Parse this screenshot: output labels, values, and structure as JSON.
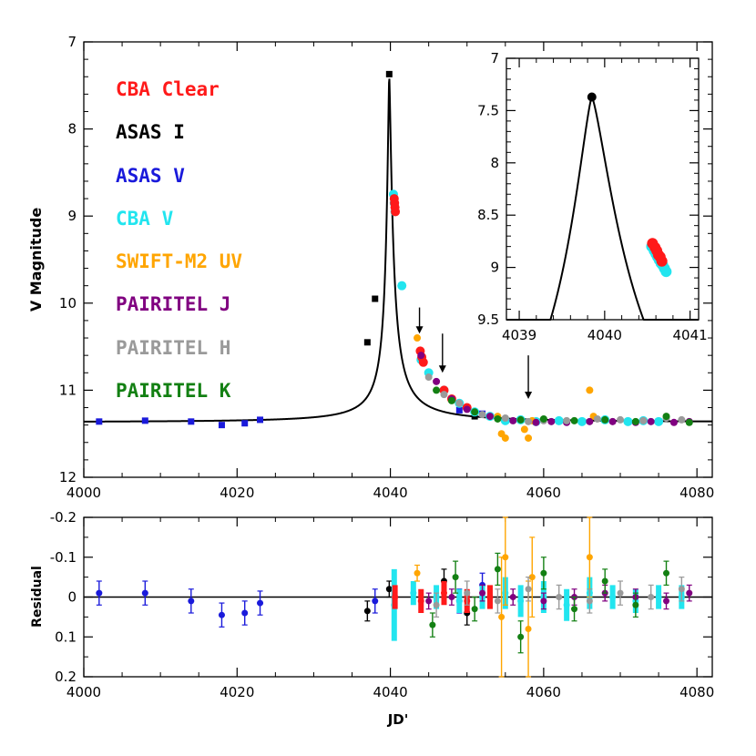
{
  "colors": {
    "cba_clear": "#ff1a1a",
    "asas_i": "#000000",
    "asas_v": "#1a1adb",
    "cba_v": "#22e5ef",
    "swift_m2": "#ffa500",
    "pairitel_j": "#800080",
    "pairitel_h": "#9a9a9a",
    "pairitel_k": "#138013",
    "curve": "#000000"
  },
  "chart_data": [
    {
      "id": "main",
      "type": "scatter",
      "title": "",
      "xlabel": "",
      "ylabel": "V Magnitude",
      "xlim": [
        4000,
        4082
      ],
      "ylim": [
        12,
        7
      ],
      "y_inverted": true,
      "xticks": [
        4000,
        4020,
        4040,
        4060,
        4080
      ],
      "yticks": [
        7,
        8,
        9,
        10,
        11,
        12
      ],
      "legend": {
        "position": "top-left",
        "entries": [
          {
            "label": "CBA  Clear",
            "series": "cba_clear"
          },
          {
            "label": "ASAS I",
            "series": "asas_i"
          },
          {
            "label": "ASAS V",
            "series": "asas_v"
          },
          {
            "label": "CBA  V",
            "series": "cba_v"
          },
          {
            "label": "SWIFT-M2 UV",
            "series": "swift_m2"
          },
          {
            "label": "PAIRITEL J",
            "series": "pairitel_j"
          },
          {
            "label": "PAIRITEL H",
            "series": "pairitel_h"
          },
          {
            "label": "PAIRITEL K",
            "series": "pairitel_k"
          }
        ]
      },
      "annotations": [
        {
          "type": "arrow",
          "label": "",
          "x": 4043.8,
          "y_from": 10.05,
          "y_to": 10.35
        },
        {
          "type": "arrow",
          "label": "",
          "x": 4046.8,
          "y_from": 10.35,
          "y_to": 10.8
        },
        {
          "type": "arrow",
          "label": "",
          "x": 4058,
          "y_from": 10.6,
          "y_to": 11.1
        }
      ],
      "model_curve": {
        "baseline": 11.37,
        "peak_x": 4039.85,
        "peak_y": 7.37,
        "description": "best-fit microlensing model"
      },
      "series": [
        {
          "name": "ASAS V",
          "key": "asas_v",
          "marker": "square",
          "x": [
            4002,
            4008,
            4014,
            4018,
            4021,
            4023,
            4049,
            4052
          ],
          "y": [
            11.36,
            11.35,
            11.36,
            11.4,
            11.38,
            11.34,
            11.23,
            11.27
          ]
        },
        {
          "name": "ASAS I",
          "key": "asas_i",
          "marker": "square",
          "x": [
            4037,
            4038,
            4039.85,
            4047,
            4050,
            4051
          ],
          "y": [
            10.45,
            9.95,
            7.37,
            11.02,
            11.2,
            11.3
          ]
        },
        {
          "name": "CBA V",
          "key": "cba_v",
          "marker": "circle",
          "x": [
            4040.4,
            4040.5,
            4040.6,
            4041.5,
            4044,
            4045,
            4047,
            4049,
            4051,
            4053,
            4055,
            4057,
            4059,
            4062,
            4065,
            4068,
            4071,
            4073,
            4075
          ],
          "y": [
            8.75,
            8.85,
            8.95,
            9.8,
            10.65,
            10.8,
            11.0,
            11.15,
            11.25,
            11.3,
            11.35,
            11.34,
            11.36,
            11.35,
            11.36,
            11.34,
            11.36,
            11.35,
            11.36
          ]
        },
        {
          "name": "CBA Clear",
          "key": "cba_clear",
          "marker": "circle",
          "x": [
            4040.5,
            4040.55,
            4040.6,
            4040.65,
            4043.9,
            4044.1,
            4044.3,
            4047,
            4048,
            4050
          ],
          "y": [
            8.8,
            8.85,
            8.9,
            8.95,
            10.55,
            10.62,
            10.68,
            11.0,
            11.1,
            11.2
          ]
        },
        {
          "name": "SWIFT-M2 UV",
          "key": "swift_m2",
          "marker": "circle",
          "x": [
            4043.5,
            4054,
            4054.5,
            4055,
            4057.5,
            4058,
            4058.5,
            4066,
            4066.5
          ],
          "y": [
            10.4,
            11.3,
            11.5,
            11.55,
            11.45,
            11.55,
            11.35,
            11.0,
            11.3
          ]
        },
        {
          "name": "PAIRITEL J",
          "key": "pairitel_j",
          "marker": "circle",
          "x": [
            4044,
            4046,
            4048,
            4050,
            4053,
            4056,
            4059,
            4061,
            4063,
            4066,
            4069,
            4072,
            4074,
            4077,
            4079
          ],
          "y": [
            10.6,
            10.9,
            11.1,
            11.22,
            11.3,
            11.35,
            11.37,
            11.36,
            11.37,
            11.36,
            11.36,
            11.37,
            11.36,
            11.37,
            11.36
          ]
        },
        {
          "name": "PAIRITEL H",
          "key": "pairitel_h",
          "marker": "circle",
          "x": [
            4045,
            4047,
            4049,
            4052,
            4055,
            4058,
            4060,
            4063,
            4067,
            4070,
            4073,
            4076,
            4078
          ],
          "y": [
            10.85,
            11.05,
            11.15,
            11.28,
            11.32,
            11.36,
            11.35,
            11.35,
            11.33,
            11.34,
            11.35,
            11.32,
            11.34
          ]
        },
        {
          "name": "PAIRITEL K",
          "key": "pairitel_k",
          "marker": "circle",
          "x": [
            4046,
            4048,
            4051,
            4054,
            4057,
            4060,
            4064,
            4068,
            4072,
            4076,
            4079
          ],
          "y": [
            11.0,
            11.12,
            11.25,
            11.33,
            11.34,
            11.33,
            11.35,
            11.34,
            11.36,
            11.3,
            11.37
          ]
        }
      ]
    },
    {
      "id": "inset",
      "type": "scatter",
      "title": "",
      "xlabel": "",
      "ylabel": "",
      "xlim": [
        4038.85,
        4041.1
      ],
      "ylim": [
        9.5,
        7
      ],
      "y_inverted": true,
      "xticks": [
        4039,
        4040,
        4041
      ],
      "yticks": [
        7,
        7.5,
        8,
        8.5,
        9,
        9.5
      ],
      "ytick_labels": [
        "7",
        "7.5",
        "8",
        "8.5",
        "9",
        "9.5"
      ],
      "series": [
        {
          "name": "ASAS I",
          "key": "asas_i",
          "marker": "circle",
          "x": [
            4039.85
          ],
          "y": [
            7.37
          ]
        },
        {
          "name": "CBA V",
          "key": "cba_v",
          "marker": "circle",
          "x": [
            4040.55,
            4040.58,
            4040.6,
            4040.62,
            4040.64,
            4040.66,
            4040.68,
            4040.7,
            4040.72
          ],
          "y": [
            8.8,
            8.84,
            8.87,
            8.9,
            8.93,
            8.96,
            8.98,
            9.01,
            9.04
          ]
        },
        {
          "name": "CBA Clear",
          "key": "cba_clear",
          "marker": "circle",
          "x": [
            4040.56,
            4040.59,
            4040.61,
            4040.63,
            4040.65,
            4040.67
          ],
          "y": [
            8.77,
            8.81,
            8.84,
            8.88,
            8.9,
            8.94
          ]
        }
      ]
    },
    {
      "id": "residual",
      "type": "scatter",
      "title": "",
      "xlabel": "JD'",
      "ylabel": "Residual",
      "xlim": [
        4000,
        4082
      ],
      "ylim": [
        0.2,
        -0.2
      ],
      "y_inverted": true,
      "xticks": [
        4000,
        4020,
        4040,
        4060,
        4080
      ],
      "yticks": [
        -0.2,
        -0.1,
        0,
        0.1,
        0.2
      ],
      "ytick_labels": [
        "-0.2",
        "-0.1",
        "0",
        "0.1",
        "0.2"
      ],
      "series": [
        {
          "name": "ASAS V",
          "key": "asas_v",
          "x": [
            4002,
            4008,
            4014,
            4018,
            4021,
            4023,
            4038,
            4049,
            4052
          ],
          "y": [
            -0.01,
            -0.01,
            0.01,
            0.045,
            0.04,
            0.015,
            0.01,
            0.01,
            -0.03
          ],
          "err": [
            0.03,
            0.03,
            0.03,
            0.03,
            0.03,
            0.03,
            0.03,
            0.03,
            0.03
          ]
        },
        {
          "name": "ASAS I",
          "key": "asas_i",
          "x": [
            4037,
            4039.85,
            4047,
            4050
          ],
          "y": [
            0.035,
            -0.02,
            -0.04,
            0.04
          ],
          "err": [
            0.025,
            0.02,
            0.03,
            0.03
          ]
        },
        {
          "name": "CBA V",
          "key": "cba_v",
          "x": [
            4040.5,
            4043,
            4046,
            4049,
            4052,
            4055,
            4057,
            4060,
            4063,
            4066,
            4069,
            4072,
            4075,
            4078
          ],
          "y": [
            0.02,
            -0.01,
            0.0,
            0.01,
            0.0,
            -0.01,
            0.01,
            0.0,
            0.02,
            -0.01,
            0.0,
            0.01,
            0.0,
            0.0
          ],
          "err": [
            0.09,
            0.03,
            0.03,
            0.03,
            0.03,
            0.04,
            0.04,
            0.04,
            0.04,
            0.04,
            0.03,
            0.03,
            0.03,
            0.03
          ]
        },
        {
          "name": "CBA Clear",
          "key": "cba_clear",
          "x": [
            4040.6,
            4044,
            4047,
            4050,
            4053
          ],
          "y": [
            0.0,
            0.01,
            -0.01,
            0.01,
            0.0
          ],
          "err": [
            0.03,
            0.03,
            0.03,
            0.03,
            0.03
          ]
        },
        {
          "name": "SWIFT-M2 UV",
          "key": "swift_m2",
          "x": [
            4043.5,
            4054.5,
            4055,
            4058,
            4058.5,
            4066
          ],
          "y": [
            -0.06,
            0.05,
            -0.1,
            0.08,
            -0.05,
            -0.1
          ],
          "err": [
            0.02,
            0.15,
            0.12,
            0.12,
            0.1,
            0.1
          ]
        },
        {
          "name": "PAIRITEL J",
          "key": "pairitel_j",
          "x": [
            4045,
            4048,
            4052,
            4056,
            4060,
            4064,
            4068,
            4072,
            4076,
            4079
          ],
          "y": [
            0.01,
            0.0,
            -0.01,
            0.0,
            0.01,
            0.0,
            -0.01,
            0.0,
            0.01,
            -0.01
          ],
          "err": [
            0.02,
            0.02,
            0.02,
            0.02,
            0.02,
            0.02,
            0.02,
            0.02,
            0.02,
            0.02
          ]
        },
        {
          "name": "PAIRITEL H",
          "key": "pairitel_h",
          "x": [
            4046,
            4050,
            4054,
            4058,
            4062,
            4066,
            4070,
            4074,
            4078
          ],
          "y": [
            0.02,
            -0.01,
            0.01,
            -0.02,
            0.0,
            0.01,
            -0.01,
            0.0,
            -0.02
          ],
          "err": [
            0.03,
            0.03,
            0.03,
            0.03,
            0.03,
            0.03,
            0.03,
            0.03,
            0.03
          ]
        },
        {
          "name": "PAIRITEL K",
          "key": "pairitel_k",
          "x": [
            4045.5,
            4048.5,
            4051,
            4054,
            4057,
            4060,
            4064,
            4068,
            4072,
            4076
          ],
          "y": [
            0.07,
            -0.05,
            0.03,
            -0.07,
            0.1,
            -0.06,
            0.03,
            -0.04,
            0.02,
            -0.06
          ],
          "err": [
            0.03,
            0.04,
            0.03,
            0.04,
            0.04,
            0.04,
            0.03,
            0.03,
            0.03,
            0.03
          ]
        }
      ]
    }
  ]
}
